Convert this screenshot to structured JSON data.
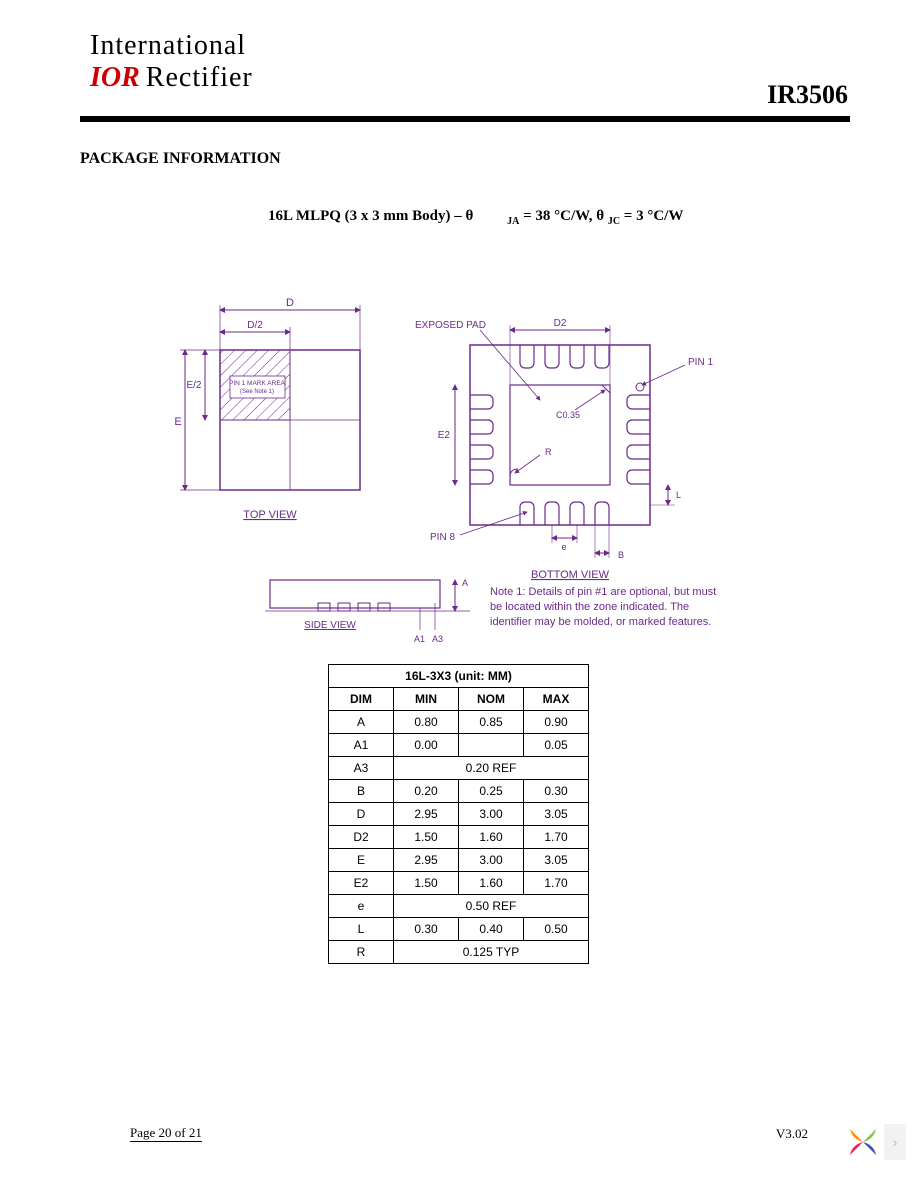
{
  "header": {
    "logo_line1": "International",
    "logo_ior": "IOR",
    "logo_rectifier": "Rectifier",
    "part_number": "IR3506"
  },
  "section_title": "PACKAGE INFORMATION",
  "package_line": {
    "prefix": "16L MLPQ (3 x 3 mm Body) – θ",
    "ja_label": "JA",
    "ja_value": " = 38  °C/W, θ ",
    "jc_label": "JC",
    "jc_value": "  = 3  °C/W"
  },
  "diagram": {
    "colors": {
      "stroke": "#6b2a8a",
      "hatch": "#6b2a8a",
      "text": "#6b2a8a"
    },
    "top_view": {
      "label": "TOP VIEW",
      "D": "D",
      "Dhalf": "D/2",
      "E": "E",
      "Ehalf": "E/2",
      "pin1_mark": "PIN 1 MARK AREA",
      "pin1_note": "(See Note 1)"
    },
    "bottom_view": {
      "label": "BOTTOM VIEW",
      "D2": "D2",
      "E2": "E2",
      "exposed_pad": "EXPOSED PAD",
      "pin1": "PIN 1",
      "pin8": "PIN 8",
      "C": "C0.35",
      "R": "R",
      "e": "e",
      "B": "B",
      "L": "L"
    },
    "side_view": {
      "label": "SIDE VIEW",
      "A": "A",
      "A1": "A1",
      "A3": "A3"
    },
    "note1": "Note 1:  Details of pin #1 are optional, but must be located within the zone indicated. The identifier may be molded, or marked features."
  },
  "table": {
    "title": "16L-3X3 (unit: MM)",
    "headers": [
      "DIM",
      "MIN",
      "NOM",
      "MAX"
    ],
    "rows": [
      {
        "dim": "A",
        "min": "0.80",
        "nom": "0.85",
        "max": "0.90"
      },
      {
        "dim": "A1",
        "min": "0.00",
        "nom": "",
        "max": "0.05"
      },
      {
        "dim": "A3",
        "span": "0.20 REF"
      },
      {
        "dim": "B",
        "min": "0.20",
        "nom": "0.25",
        "max": "0.30"
      },
      {
        "dim": "D",
        "min": "2.95",
        "nom": "3.00",
        "max": "3.05"
      },
      {
        "dim": "D2",
        "min": "1.50",
        "nom": "1.60",
        "max": "1.70"
      },
      {
        "dim": "E",
        "min": "2.95",
        "nom": "3.00",
        "max": "3.05"
      },
      {
        "dim": "E2",
        "min": "1.50",
        "nom": "1.60",
        "max": "1.70"
      },
      {
        "dim": "e",
        "span": "0.50 REF"
      },
      {
        "dim": "L",
        "min": "0.30",
        "nom": "0.40",
        "max": "0.50"
      },
      {
        "dim": "R",
        "span": "0.125 TYP"
      }
    ]
  },
  "footer": {
    "left": "Page 20 of 21",
    "right": "V3.02"
  }
}
